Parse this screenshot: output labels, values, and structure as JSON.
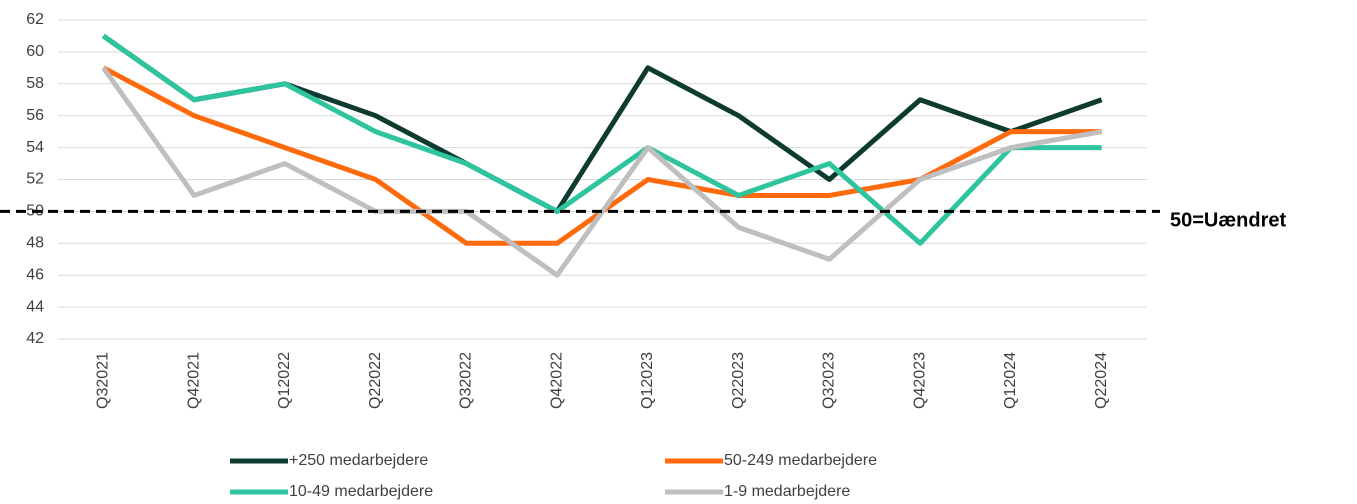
{
  "chart_data": {
    "type": "line",
    "categories": [
      "Q32021",
      "Q42021",
      "Q12022",
      "Q22022",
      "Q32022",
      "Q42022",
      "Q12023",
      "Q22023",
      "Q32023",
      "Q42023",
      "Q12024",
      "Q22024"
    ],
    "series": [
      {
        "name": "+250 medarbejdere",
        "color": "#0d3b2f",
        "values": [
          61,
          57,
          58,
          56,
          53,
          50,
          59,
          56,
          52,
          57,
          55,
          57
        ]
      },
      {
        "name": "50-249 medarbejdere",
        "color": "#ff6a0d",
        "values": [
          59,
          56,
          54,
          52,
          48,
          48,
          52,
          51,
          51,
          52,
          55,
          55
        ]
      },
      {
        "name": "10-49 medarbejdere",
        "color": "#2ec49e",
        "values": [
          61,
          57,
          58,
          55,
          53,
          50,
          54,
          51,
          53,
          48,
          54,
          54
        ]
      },
      {
        "name": "1-9 medarbejdere",
        "color": "#bfbfbf",
        "values": [
          59,
          51,
          53,
          50,
          50,
          46,
          54,
          49,
          47,
          52,
          54,
          55
        ]
      }
    ],
    "ylim": [
      42,
      62
    ],
    "yticks": [
      42,
      44,
      46,
      48,
      50,
      52,
      54,
      56,
      58,
      60,
      62
    ],
    "grid": true,
    "reference_line": {
      "value": 50,
      "label": "50=Uændret"
    }
  }
}
